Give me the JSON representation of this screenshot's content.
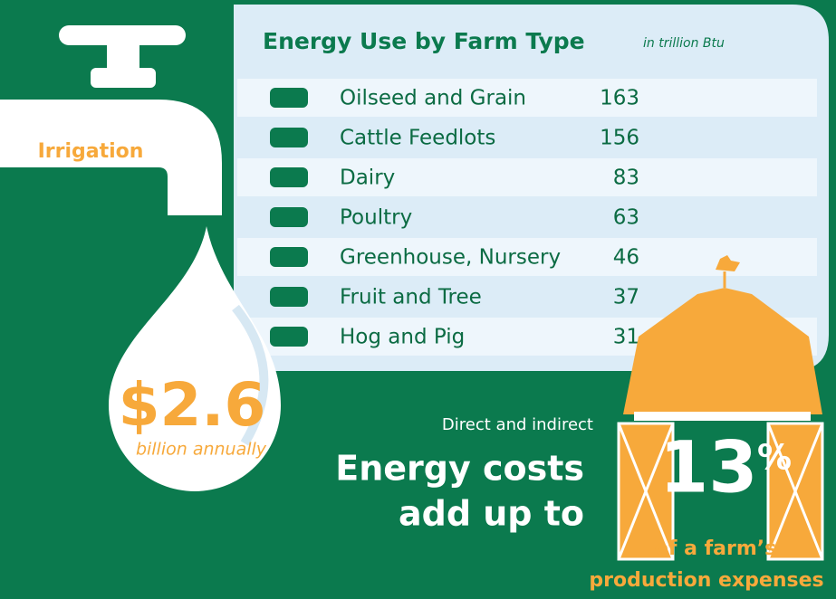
{
  "irrigation": {
    "label": "Irrigation",
    "amount": "$2.6",
    "amount_note": "billion annually"
  },
  "table": {
    "title": "Energy Use by Farm Type",
    "unit": "in trillion Btu",
    "rows": [
      [
        "Oilseed and Grain",
        163
      ],
      [
        "Cattle Feedlots",
        156
      ],
      [
        "Dairy",
        83
      ],
      [
        "Poultry",
        63
      ],
      [
        "Greenhouse, Nursery",
        46
      ],
      [
        "Fruit and Tree",
        37
      ],
      [
        "Hog and Pig",
        31
      ]
    ]
  },
  "costs": {
    "intro": "Direct and indirect",
    "headline": [
      "Energy costs",
      "add up to"
    ],
    "share": "13",
    "share_sign": "%",
    "caption": [
      "of a farm’s",
      "production expenses"
    ]
  }
}
